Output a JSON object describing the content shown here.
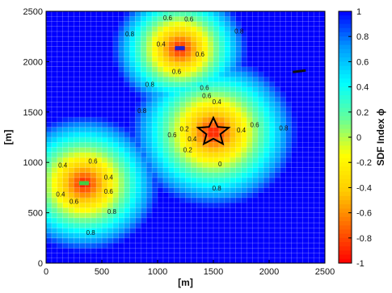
{
  "chart_data": {
    "type": "heatmap",
    "title": "",
    "xlabel": "[m]",
    "ylabel": "[m]",
    "xlim": [
      0,
      2500
    ],
    "ylim": [
      0,
      2500
    ],
    "xticks": [
      "0",
      "500",
      "1000",
      "1500",
      "2000",
      "2500"
    ],
    "yticks": [
      "0",
      "500",
      "1000",
      "1500",
      "2000",
      "2500"
    ],
    "colorbar": {
      "label": "SDF Index ϕ",
      "range": [
        -1,
        1
      ],
      "ticks": [
        "1",
        "0.8",
        "0.6",
        "0.4",
        "0.2",
        "0",
        "-0.2",
        "-0.4",
        "-0.6",
        "-0.8",
        "-1"
      ],
      "colors": [
        "#ff0000",
        "#ff6600",
        "#ffcc00",
        "#ffff00",
        "#66ff99",
        "#00ffff",
        "#0099ff",
        "#0000ff"
      ]
    },
    "grid": true,
    "centers": [
      {
        "name": "top",
        "x": 1200,
        "y": 2130,
        "radius": 340
      },
      {
        "name": "middle",
        "x": 1500,
        "y": 1300,
        "radius": 420
      },
      {
        "name": "left",
        "x": 340,
        "y": 790,
        "radius": 380
      }
    ],
    "features": [
      {
        "shape": "star",
        "x": 1500,
        "y": 1300,
        "color": "#000000"
      },
      {
        "shape": "bar",
        "x": 1200,
        "y": 2130,
        "color": "#2222cc"
      },
      {
        "shape": "bar",
        "x": 340,
        "y": 790,
        "color": "#44cc44"
      },
      {
        "shape": "line",
        "x": 2270,
        "y": 1905,
        "color": "#111111"
      }
    ],
    "contour_labels": [
      {
        "text": "0.8",
        "x": 750,
        "y": 2250
      },
      {
        "text": "0.6",
        "x": 1090,
        "y": 2410
      },
      {
        "text": "0.6",
        "x": 1280,
        "y": 2400
      },
      {
        "text": "0.8",
        "x": 1730,
        "y": 2280
      },
      {
        "text": "0.4",
        "x": 1030,
        "y": 2150
      },
      {
        "text": "0.6",
        "x": 1380,
        "y": 2050
      },
      {
        "text": "0.6",
        "x": 1170,
        "y": 1880
      },
      {
        "text": "0.6",
        "x": 1420,
        "y": 1720
      },
      {
        "text": "0.6",
        "x": 1440,
        "y": 1640
      },
      {
        "text": "0.8",
        "x": 930,
        "y": 1750
      },
      {
        "text": "0.8",
        "x": 860,
        "y": 1490
      },
      {
        "text": "0.4",
        "x": 1530,
        "y": 1580
      },
      {
        "text": "0.2",
        "x": 1240,
        "y": 1310
      },
      {
        "text": "0.4",
        "x": 1310,
        "y": 1210
      },
      {
        "text": "0.6",
        "x": 1130,
        "y": 1250
      },
      {
        "text": "0.6",
        "x": 1870,
        "y": 1350
      },
      {
        "text": "0.4",
        "x": 1750,
        "y": 1300
      },
      {
        "text": "0.2",
        "x": 1270,
        "y": 1100
      },
      {
        "text": "0",
        "x": 1560,
        "y": 960
      },
      {
        "text": "0.8",
        "x": 2130,
        "y": 1320
      },
      {
        "text": "0.8",
        "x": 1530,
        "y": 720
      },
      {
        "text": "0.4",
        "x": 150,
        "y": 950
      },
      {
        "text": "0.6",
        "x": 420,
        "y": 990
      },
      {
        "text": "0.4",
        "x": 560,
        "y": 830
      },
      {
        "text": "0.4",
        "x": 130,
        "y": 660
      },
      {
        "text": "0.6",
        "x": 250,
        "y": 590
      },
      {
        "text": "0.6",
        "x": 560,
        "y": 690
      },
      {
        "text": "0.8",
        "x": 590,
        "y": 490
      },
      {
        "text": "0.8",
        "x": 400,
        "y": 280
      }
    ]
  }
}
